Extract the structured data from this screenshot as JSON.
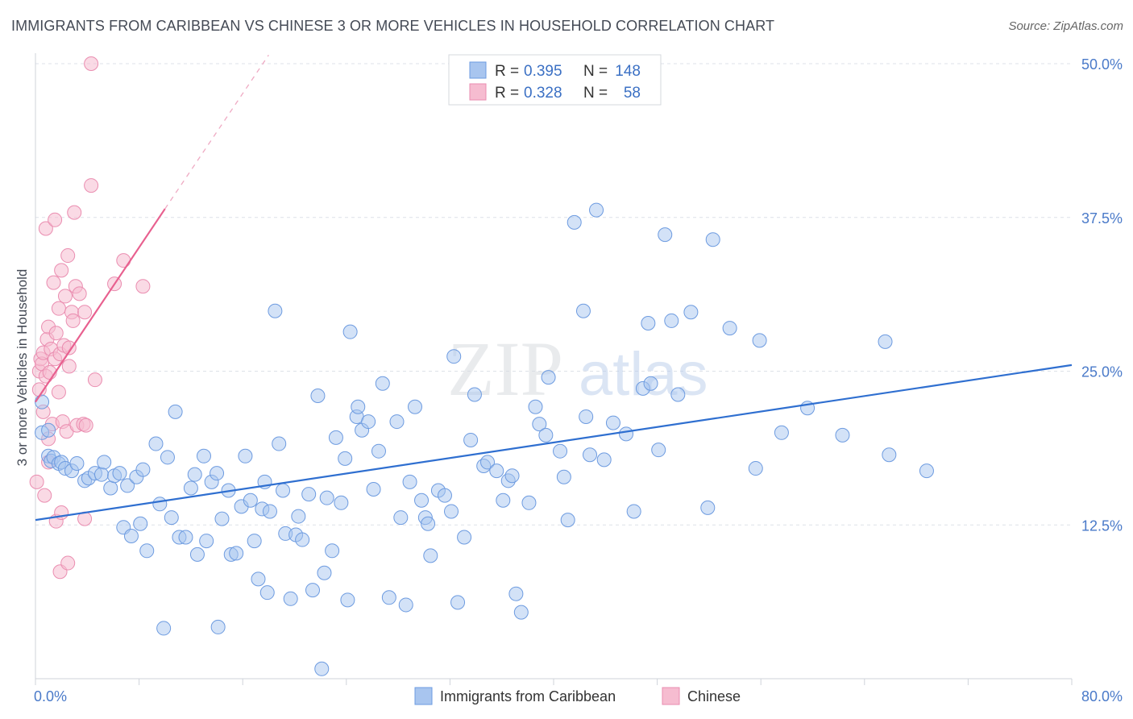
{
  "header": {
    "title": "IMMIGRANTS FROM CARIBBEAN VS CHINESE 3 OR MORE VEHICLES IN HOUSEHOLD CORRELATION CHART",
    "source": "Source: ZipAtlas.com"
  },
  "watermark": {
    "zip": "ZIP",
    "atlas": "atlas"
  },
  "legend": {
    "rows": [
      {
        "r_label": "R =",
        "r_value": "0.395",
        "n_label": "N =",
        "n_value": "148"
      },
      {
        "r_label": "R =",
        "r_value": "0.328",
        "n_label": "N =",
        "n_value": "58"
      }
    ]
  },
  "colors": {
    "blue_fill": "#a8c5ef",
    "blue_stroke": "#6d9be0",
    "blue_line": "#2f6fd0",
    "pink_fill": "#f6bcd0",
    "pink_stroke": "#ea8db0",
    "pink_line": "#e8608f",
    "grid": "#dde1e8",
    "tick_text": "#4a7ac9"
  },
  "chart_data": {
    "type": "scatter",
    "title": "IMMIGRANTS FROM CARIBBEAN VS CHINESE 3 OR MORE VEHICLES IN HOUSEHOLD CORRELATION CHART",
    "xlabel": "",
    "ylabel": "3 or more Vehicles in Household",
    "xlim": [
      0,
      80
    ],
    "ylim": [
      0,
      50
    ],
    "x_tick_labels": [
      "0.0%",
      "80.0%"
    ],
    "y_ticks": [
      12.5,
      25.0,
      37.5,
      50.0
    ],
    "y_tick_labels": [
      "12.5%",
      "25.0%",
      "37.5%",
      "50.0%"
    ],
    "grid": true,
    "legend_position": "top-center",
    "series": [
      {
        "name": "Immigrants from Caribbean",
        "color": "#a8c5ef",
        "trend": {
          "x0": 0,
          "y0": 12.9,
          "x1": 80,
          "y1": 25.5
        },
        "points": [
          [
            0.5,
            22.5
          ],
          [
            0.5,
            20.0
          ],
          [
            1.0,
            20.2
          ],
          [
            1.0,
            18.1
          ],
          [
            1.2,
            17.7
          ],
          [
            1.4,
            18.0
          ],
          [
            1.8,
            17.5
          ],
          [
            2.0,
            17.6
          ],
          [
            2.3,
            17.1
          ],
          [
            2.8,
            16.9
          ],
          [
            3.2,
            17.5
          ],
          [
            3.8,
            16.1
          ],
          [
            4.1,
            16.3
          ],
          [
            4.6,
            16.7
          ],
          [
            5.1,
            16.6
          ],
          [
            5.3,
            17.6
          ],
          [
            5.8,
            15.5
          ],
          [
            6.1,
            16.5
          ],
          [
            6.5,
            16.7
          ],
          [
            6.8,
            12.3
          ],
          [
            7.1,
            15.7
          ],
          [
            7.4,
            11.6
          ],
          [
            7.8,
            16.4
          ],
          [
            8.1,
            12.6
          ],
          [
            8.3,
            17.0
          ],
          [
            8.6,
            10.4
          ],
          [
            9.3,
            19.1
          ],
          [
            9.6,
            14.2
          ],
          [
            9.9,
            4.1
          ],
          [
            10.2,
            18.0
          ],
          [
            10.5,
            13.1
          ],
          [
            10.8,
            21.7
          ],
          [
            11.1,
            11.5
          ],
          [
            11.6,
            11.5
          ],
          [
            12.0,
            15.5
          ],
          [
            12.3,
            16.6
          ],
          [
            12.5,
            10.1
          ],
          [
            13.0,
            18.1
          ],
          [
            13.2,
            11.2
          ],
          [
            13.6,
            16.0
          ],
          [
            14.0,
            16.7
          ],
          [
            14.1,
            4.2
          ],
          [
            14.4,
            13.0
          ],
          [
            14.9,
            15.3
          ],
          [
            15.1,
            10.1
          ],
          [
            15.5,
            10.2
          ],
          [
            15.9,
            14.0
          ],
          [
            16.2,
            18.1
          ],
          [
            16.6,
            14.5
          ],
          [
            16.9,
            11.2
          ],
          [
            17.2,
            8.1
          ],
          [
            17.5,
            13.8
          ],
          [
            17.7,
            16.0
          ],
          [
            17.9,
            7.0
          ],
          [
            18.1,
            13.6
          ],
          [
            18.5,
            29.9
          ],
          [
            18.8,
            19.1
          ],
          [
            19.1,
            15.3
          ],
          [
            19.3,
            11.8
          ],
          [
            19.7,
            6.5
          ],
          [
            20.1,
            11.7
          ],
          [
            20.3,
            13.2
          ],
          [
            20.6,
            11.3
          ],
          [
            21.1,
            15.0
          ],
          [
            21.4,
            7.2
          ],
          [
            21.8,
            23.0
          ],
          [
            22.1,
            0.8
          ],
          [
            22.3,
            8.6
          ],
          [
            22.5,
            14.7
          ],
          [
            22.9,
            10.4
          ],
          [
            23.2,
            19.6
          ],
          [
            23.6,
            14.3
          ],
          [
            23.9,
            17.9
          ],
          [
            24.1,
            6.4
          ],
          [
            24.3,
            28.2
          ],
          [
            24.8,
            21.3
          ],
          [
            24.9,
            22.1
          ],
          [
            25.2,
            20.2
          ],
          [
            25.7,
            20.9
          ],
          [
            26.1,
            15.4
          ],
          [
            26.5,
            18.5
          ],
          [
            26.8,
            24.0
          ],
          [
            27.3,
            6.6
          ],
          [
            27.9,
            20.9
          ],
          [
            28.2,
            13.1
          ],
          [
            28.6,
            6.0
          ],
          [
            28.9,
            16.0
          ],
          [
            29.3,
            22.1
          ],
          [
            29.8,
            14.5
          ],
          [
            30.1,
            13.1
          ],
          [
            30.3,
            12.6
          ],
          [
            30.5,
            10.0
          ],
          [
            31.1,
            15.3
          ],
          [
            31.6,
            14.9
          ],
          [
            32.1,
            13.6
          ],
          [
            32.3,
            26.2
          ],
          [
            32.6,
            6.2
          ],
          [
            33.1,
            11.5
          ],
          [
            33.6,
            19.4
          ],
          [
            33.9,
            23.1
          ],
          [
            34.6,
            17.3
          ],
          [
            34.9,
            17.6
          ],
          [
            35.6,
            16.9
          ],
          [
            36.1,
            14.5
          ],
          [
            36.5,
            16.1
          ],
          [
            36.8,
            16.5
          ],
          [
            37.1,
            6.9
          ],
          [
            37.5,
            5.4
          ],
          [
            38.1,
            14.3
          ],
          [
            38.6,
            22.1
          ],
          [
            38.9,
            20.7
          ],
          [
            39.4,
            19.8
          ],
          [
            39.6,
            24.5
          ],
          [
            40.5,
            18.5
          ],
          [
            40.8,
            16.4
          ],
          [
            41.1,
            12.9
          ],
          [
            41.6,
            37.1
          ],
          [
            42.3,
            29.9
          ],
          [
            42.5,
            21.3
          ],
          [
            42.8,
            18.2
          ],
          [
            43.3,
            38.1
          ],
          [
            43.9,
            17.8
          ],
          [
            44.6,
            20.8
          ],
          [
            45.6,
            19.9
          ],
          [
            46.2,
            13.6
          ],
          [
            46.9,
            23.6
          ],
          [
            47.3,
            28.9
          ],
          [
            47.5,
            24.0
          ],
          [
            48.1,
            18.6
          ],
          [
            48.6,
            36.1
          ],
          [
            49.1,
            29.1
          ],
          [
            49.6,
            23.1
          ],
          [
            50.6,
            29.8
          ],
          [
            51.9,
            13.9
          ],
          [
            52.3,
            35.7
          ],
          [
            53.6,
            28.5
          ],
          [
            55.6,
            17.1
          ],
          [
            55.9,
            27.5
          ],
          [
            57.6,
            20.0
          ],
          [
            59.6,
            22.0
          ],
          [
            62.3,
            19.8
          ],
          [
            65.6,
            27.4
          ],
          [
            65.9,
            18.2
          ],
          [
            68.8,
            16.9
          ]
        ]
      },
      {
        "name": "Chinese",
        "color": "#f6bcd0",
        "trend": {
          "x0": 0,
          "y0": 22.5,
          "x1": 10,
          "y1": 38.2,
          "dash_to_x": 18,
          "dash_to_y": 50.7
        },
        "points": [
          [
            0.1,
            16.0
          ],
          [
            0.3,
            23.5
          ],
          [
            0.3,
            25.0
          ],
          [
            0.4,
            26.0
          ],
          [
            0.5,
            25.6
          ],
          [
            0.6,
            26.5
          ],
          [
            0.6,
            21.7
          ],
          [
            0.7,
            14.9
          ],
          [
            0.8,
            24.6
          ],
          [
            0.8,
            36.6
          ],
          [
            0.9,
            27.6
          ],
          [
            1.0,
            28.6
          ],
          [
            1.0,
            19.5
          ],
          [
            1.0,
            17.6
          ],
          [
            1.1,
            24.9
          ],
          [
            1.2,
            26.8
          ],
          [
            1.3,
            20.7
          ],
          [
            1.4,
            32.2
          ],
          [
            1.5,
            26.0
          ],
          [
            1.5,
            37.3
          ],
          [
            1.6,
            28.1
          ],
          [
            1.6,
            12.8
          ],
          [
            1.8,
            30.1
          ],
          [
            1.8,
            23.3
          ],
          [
            1.9,
            8.7
          ],
          [
            1.9,
            26.4
          ],
          [
            2.0,
            13.5
          ],
          [
            2.0,
            33.2
          ],
          [
            2.1,
            20.9
          ],
          [
            2.2,
            27.1
          ],
          [
            2.3,
            31.1
          ],
          [
            2.4,
            20.1
          ],
          [
            2.5,
            9.4
          ],
          [
            2.5,
            34.4
          ],
          [
            2.6,
            26.9
          ],
          [
            2.6,
            25.4
          ],
          [
            2.8,
            29.8
          ],
          [
            2.9,
            29.1
          ],
          [
            3.0,
            37.9
          ],
          [
            3.1,
            31.9
          ],
          [
            3.2,
            20.6
          ],
          [
            3.4,
            31.3
          ],
          [
            3.7,
            20.7
          ],
          [
            3.8,
            29.8
          ],
          [
            3.8,
            13.0
          ],
          [
            3.9,
            20.6
          ],
          [
            4.3,
            50.0
          ],
          [
            4.3,
            40.1
          ],
          [
            4.6,
            24.3
          ],
          [
            6.1,
            32.1
          ],
          [
            6.8,
            34.0
          ],
          [
            8.3,
            31.9
          ]
        ]
      }
    ]
  },
  "bottom_legend": {
    "items": [
      "Immigrants from Caribbean",
      "Chinese"
    ]
  }
}
